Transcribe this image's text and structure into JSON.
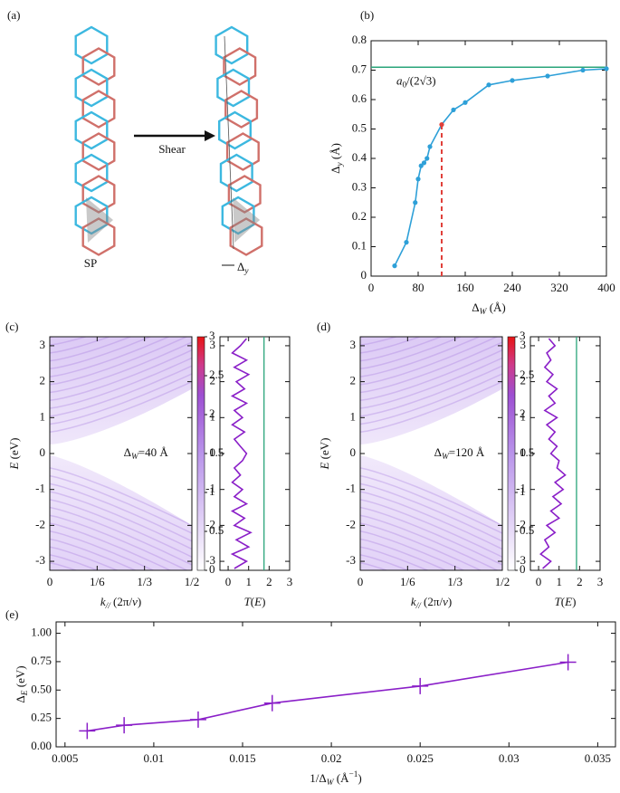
{
  "diagram": {
    "panel_label": "(a)",
    "arrow_label": "Shear",
    "sp_label": "SP",
    "shift_label": [
      {
        "text": "Δ",
        "style": "normal"
      },
      {
        "text": "y",
        "style": "italic-sub"
      }
    ]
  },
  "chart_data": [
    {
      "type": "line",
      "panel_label": "(b)",
      "color": "#2ea0d8",
      "x": [
        40,
        60,
        75,
        80,
        85,
        90,
        95,
        100,
        120,
        140,
        160,
        200,
        240,
        300,
        360,
        400
      ],
      "values": [
        0.035,
        0.115,
        0.25,
        0.33,
        0.375,
        0.385,
        0.4,
        0.44,
        0.515,
        0.565,
        0.59,
        0.65,
        0.665,
        0.68,
        0.7,
        0.705
      ],
      "marker": "circle",
      "cutoff_x": 120,
      "cutoff_color": "#e0403a",
      "hline": 0.71,
      "hline_color": "#2aa57a",
      "hline_label": [
        {
          "text": "a",
          "style": "italic"
        },
        {
          "text": "0",
          "style": "sub"
        },
        {
          "text": "/(2√3)",
          "style": "normal"
        }
      ],
      "xlim": [
        0,
        400
      ],
      "xticks": [
        0,
        80,
        160,
        240,
        320,
        400
      ],
      "ylim": [
        0,
        0.8
      ],
      "yticks": [
        0,
        0.1,
        0.2,
        0.3,
        0.4,
        0.5,
        0.6,
        0.7,
        0.8
      ],
      "x_label": [
        {
          "text": "Δ",
          "style": "normal"
        },
        {
          "text": "W",
          "style": "italic-sub"
        },
        {
          "text": " (Å)",
          "style": "normal"
        }
      ],
      "y_label": [
        {
          "text": "Δ",
          "style": "normal"
        },
        {
          "text": "y",
          "style": "italic-sub"
        },
        {
          "text": " (Å)",
          "style": "normal"
        }
      ]
    },
    {
      "type": "heatmap",
      "panel_label": "(c)",
      "annotation": [
        {
          "text": "Δ",
          "style": "normal"
        },
        {
          "text": "W",
          "style": "italic-sub"
        },
        {
          "text": "=40 Å",
          "style": "normal"
        }
      ],
      "xlim": [
        0,
        0.5
      ],
      "xticks": [
        0,
        {
          "value": 0.16667,
          "label": "1/6"
        },
        {
          "value": 0.33333,
          "label": "1/3"
        },
        {
          "value": 0.5,
          "label": "1/2"
        }
      ],
      "ylim": [
        -3.25,
        3.25
      ],
      "yticks": [
        -3,
        -2,
        -1,
        0,
        1,
        2,
        3
      ],
      "colorbar": {
        "lim": [
          0,
          3
        ],
        "ticks": [
          0,
          0.5,
          1,
          1.5,
          2,
          2.5,
          3
        ]
      },
      "x_label": [
        {
          "text": "k",
          "style": "italic"
        },
        {
          "text": "//",
          "style": "italic-sub"
        },
        {
          "text": " (2π/",
          "style": "normal"
        },
        {
          "text": "v",
          "style": "italic"
        },
        {
          "text": ")",
          "style": "normal"
        }
      ],
      "y_label": [
        {
          "text": "E",
          "style": "italic"
        },
        {
          "text": " (eV)",
          "style": "normal"
        }
      ]
    },
    {
      "type": "line",
      "orientation": "vertical",
      "color": "#8a1fc8",
      "vline": 1.75,
      "vline_color": "#2aa57a",
      "y": [
        -3.2,
        -3,
        -2.8,
        -2.6,
        -2.4,
        -2.2,
        -2,
        -1.8,
        -1.6,
        -1.4,
        -1.2,
        -1,
        -0.8,
        -0.6,
        -0.4,
        -0.2,
        0,
        0.2,
        0.4,
        0.6,
        0.8,
        1,
        1.2,
        1.4,
        1.6,
        1.8,
        2,
        2.2,
        2.4,
        2.6,
        2.8,
        3,
        3.2
      ],
      "values": [
        0.3,
        0.9,
        0.2,
        1.0,
        0.4,
        1.1,
        0.3,
        0.8,
        0.2,
        0.9,
        0.3,
        0.7,
        0.2,
        0.6,
        0.3,
        0.7,
        0.9,
        0.6,
        0.3,
        0.8,
        0.2,
        0.7,
        0.3,
        0.9,
        0.2,
        0.8,
        0.4,
        1.0,
        0.3,
        0.9,
        0.2,
        0.6,
        0.9
      ],
      "xlim": [
        -0.4,
        3
      ],
      "xticks": [
        0,
        1,
        2,
        3
      ],
      "ylim": [
        -3.25,
        3.25
      ],
      "yticks": [
        -3,
        -2,
        -1,
        0,
        1,
        2,
        3
      ],
      "x_label": [
        {
          "text": "T",
          "style": "italic"
        },
        {
          "text": "(",
          "style": "normal"
        },
        {
          "text": "E",
          "style": "italic"
        },
        {
          "text": ")",
          "style": "normal"
        }
      ]
    },
    {
      "type": "heatmap",
      "panel_label": "(d)",
      "annotation": [
        {
          "text": "Δ",
          "style": "normal"
        },
        {
          "text": "W",
          "style": "italic-sub"
        },
        {
          "text": "=120 Å",
          "style": "normal"
        }
      ],
      "xlim": [
        0,
        0.5
      ],
      "xticks": [
        0,
        {
          "value": 0.16667,
          "label": "1/6"
        },
        {
          "value": 0.33333,
          "label": "1/3"
        },
        {
          "value": 0.5,
          "label": "1/2"
        }
      ],
      "ylim": [
        -3.25,
        3.25
      ],
      "yticks": [
        -3,
        -2,
        -1,
        0,
        1,
        2,
        3
      ],
      "colorbar": {
        "lim": [
          0,
          3
        ],
        "ticks": [
          0,
          0.5,
          1,
          1.5,
          2,
          2.5,
          3
        ]
      },
      "x_label": [
        {
          "text": "k",
          "style": "italic"
        },
        {
          "text": "//",
          "style": "italic-sub"
        },
        {
          "text": " (2π/",
          "style": "normal"
        },
        {
          "text": "v",
          "style": "italic"
        },
        {
          "text": ")",
          "style": "normal"
        }
      ],
      "y_label": [
        {
          "text": "E",
          "style": "italic"
        },
        {
          "text": " (eV)",
          "style": "normal"
        }
      ]
    },
    {
      "type": "line",
      "orientation": "vertical",
      "color": "#8a1fc8",
      "vline": 1.85,
      "vline_color": "#2aa57a",
      "y": [
        -3.2,
        -3,
        -2.8,
        -2.6,
        -2.4,
        -2.2,
        -2,
        -1.8,
        -1.6,
        -1.4,
        -1.2,
        -1,
        -0.8,
        -0.6,
        -0.4,
        -0.2,
        0,
        0.2,
        0.4,
        0.6,
        0.8,
        1,
        1.2,
        1.4,
        1.6,
        1.8,
        2,
        2.2,
        2.4,
        2.6,
        2.8,
        3,
        3.2
      ],
      "values": [
        0.2,
        0.6,
        0.1,
        0.5,
        0.3,
        0.8,
        0.4,
        1.0,
        0.6,
        1.1,
        0.7,
        1.2,
        0.8,
        1.3,
        0.9,
        1.0,
        0.6,
        0.9,
        0.5,
        0.8,
        0.4,
        0.9,
        0.3,
        0.8,
        0.5,
        0.9,
        0.4,
        0.7,
        0.3,
        0.6,
        0.4,
        0.8,
        0.5
      ],
      "xlim": [
        -0.4,
        3
      ],
      "xticks": [
        0,
        1,
        2,
        3
      ],
      "ylim": [
        -3.25,
        3.25
      ],
      "yticks": [
        -3,
        -2,
        -1,
        0,
        1,
        2,
        3
      ],
      "x_label": [
        {
          "text": "T",
          "style": "italic"
        },
        {
          "text": "(",
          "style": "normal"
        },
        {
          "text": "E",
          "style": "italic"
        },
        {
          "text": ")",
          "style": "normal"
        }
      ]
    },
    {
      "type": "line",
      "panel_label": "(e)",
      "color": "#8a1fc8",
      "marker": "plus",
      "x": [
        0.00625,
        0.00833,
        0.0125,
        0.01667,
        0.025,
        0.03333
      ],
      "values": [
        0.14,
        0.19,
        0.24,
        0.385,
        0.535,
        0.745
      ],
      "xlim": [
        0.0045,
        0.036
      ],
      "xticks": [
        0.005,
        0.01,
        0.015,
        0.02,
        0.025,
        0.03,
        0.035
      ],
      "ylim": [
        0,
        1.1
      ],
      "yticks": [
        {
          "value": 0,
          "label": "0.00"
        },
        {
          "value": 0.25,
          "label": "0.25"
        },
        {
          "value": 0.5,
          "label": "0.50"
        },
        {
          "value": 0.75,
          "label": "0.75"
        },
        {
          "value": 1,
          "label": "1.00"
        }
      ],
      "x_label": [
        {
          "text": "1/Δ",
          "style": "normal"
        },
        {
          "text": "W",
          "style": "italic-sub"
        },
        {
          "text": " (Å",
          "style": "normal"
        },
        {
          "text": "−1",
          "style": "sup"
        },
        {
          "text": ")",
          "style": "normal"
        }
      ],
      "y_label": [
        {
          "text": "Δ",
          "style": "normal"
        },
        {
          "text": "E",
          "style": "italic-sub"
        },
        {
          "text": " (eV)",
          "style": "normal"
        }
      ]
    }
  ]
}
